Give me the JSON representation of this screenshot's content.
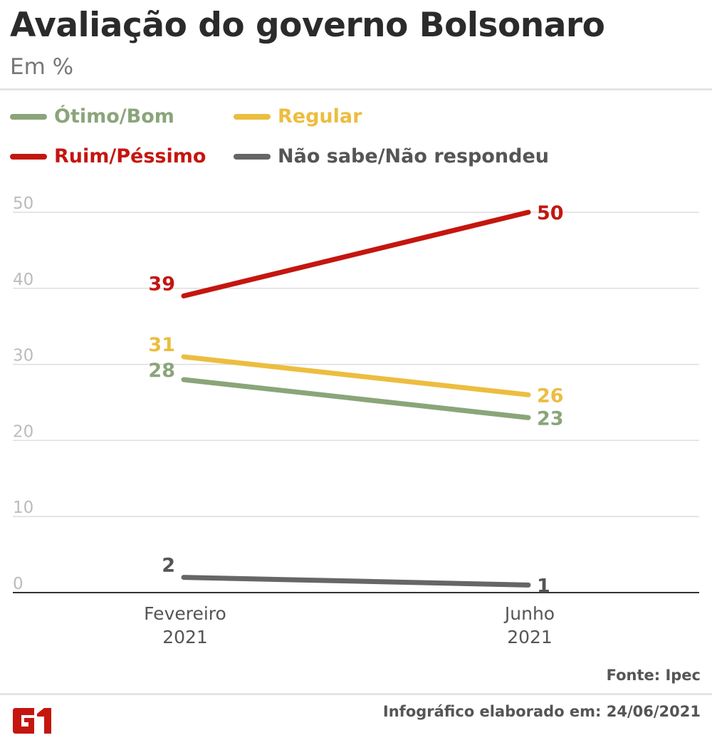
{
  "title": "Avaliação do governo Bolsonaro",
  "subtitle": "Em %",
  "legend": [
    {
      "label": "Ótimo/Bom",
      "color": "#8aa57a"
    },
    {
      "label": "Regular",
      "color": "#ecbd3f"
    },
    {
      "label": "Ruim/Péssimo",
      "color": "#c4160f"
    },
    {
      "label": "Não sabe/Não respondeu",
      "color": "#666666"
    }
  ],
  "chart_data": {
    "type": "line",
    "categories": [
      "Fevereiro\n2021",
      "Junho\n2021"
    ],
    "category_lines": [
      [
        "Fevereiro",
        "2021"
      ],
      [
        "Junho",
        "2021"
      ]
    ],
    "ylim": [
      0,
      50
    ],
    "yticks": [
      "0",
      "10",
      "20",
      "30",
      "40",
      "50"
    ],
    "grid": true,
    "legend_placement": "top-left",
    "series": [
      {
        "name": "Ótimo/Bom",
        "color": "#8aa57a",
        "values": [
          28,
          23
        ]
      },
      {
        "name": "Regular",
        "color": "#ecbd3f",
        "values": [
          31,
          26
        ]
      },
      {
        "name": "Ruim/Péssimo",
        "color": "#c4160f",
        "values": [
          39,
          50
        ]
      },
      {
        "name": "Não sabe/Não respondeu",
        "color": "#666666",
        "values": [
          2,
          1
        ]
      }
    ]
  },
  "footer": {
    "source": "Fonte: Ipec",
    "credit": "Infográfico elaborado em: 24/06/2021",
    "logo": "G1"
  }
}
